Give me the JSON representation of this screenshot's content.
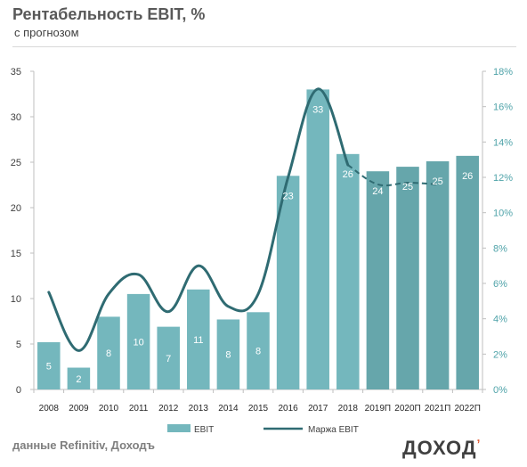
{
  "header": {
    "title": "Рентабельность  EBIT, %",
    "subtitle": "с прогнозом"
  },
  "footer": {
    "source": "данные Refinitiv, Доходъ",
    "brand": "ДОХОД",
    "brand_mark": "ʼ"
  },
  "colors": {
    "bar": "#74b7bd",
    "bar_forecast": "#66a6ab",
    "line": "#2f6b72",
    "left_axis_text": "#404040",
    "right_axis_text": "#4fa3a9",
    "label_text": "#ffffff"
  },
  "chart_data": {
    "type": "bar",
    "categories": [
      "2008",
      "2009",
      "2010",
      "2011",
      "2012",
      "2013",
      "2014",
      "2015",
      "2016",
      "2017",
      "2018",
      "2019П",
      "2020П",
      "2021П",
      "2022П"
    ],
    "series": [
      {
        "name": "EBIT",
        "kind": "bar",
        "axis": "left",
        "values": [
          5.2,
          2.4,
          8.0,
          10.5,
          6.9,
          11.0,
          7.7,
          8.5,
          23.5,
          33.0,
          25.9,
          24.0,
          24.5,
          25.1,
          25.7
        ],
        "labels": [
          "5",
          "2",
          "8",
          "10",
          "7",
          "11",
          "8",
          "8",
          "23",
          "33",
          "26",
          "24",
          "25",
          "25",
          "26"
        ]
      },
      {
        "name": "Маржа EBIT",
        "kind": "line",
        "axis": "right",
        "values": [
          5.5,
          2.2,
          5.4,
          6.5,
          4.4,
          7.0,
          4.7,
          5.4,
          12.0,
          17.0,
          12.7,
          11.6,
          11.7,
          11.6,
          null
        ],
        "forecast_from_index": 10
      }
    ],
    "y_left": {
      "lim": [
        0,
        35
      ],
      "ticks": [
        "0",
        "5",
        "10",
        "15",
        "20",
        "25",
        "30",
        "35"
      ]
    },
    "y_right": {
      "lim": [
        0,
        18
      ],
      "ticks": [
        "0%",
        "2%",
        "4%",
        "6%",
        "8%",
        "10%",
        "12%",
        "14%",
        "16%",
        "18%"
      ]
    },
    "legend": {
      "position": "bottom",
      "items": [
        "EBIT",
        "Маржа EBIT"
      ]
    },
    "grid": false
  }
}
